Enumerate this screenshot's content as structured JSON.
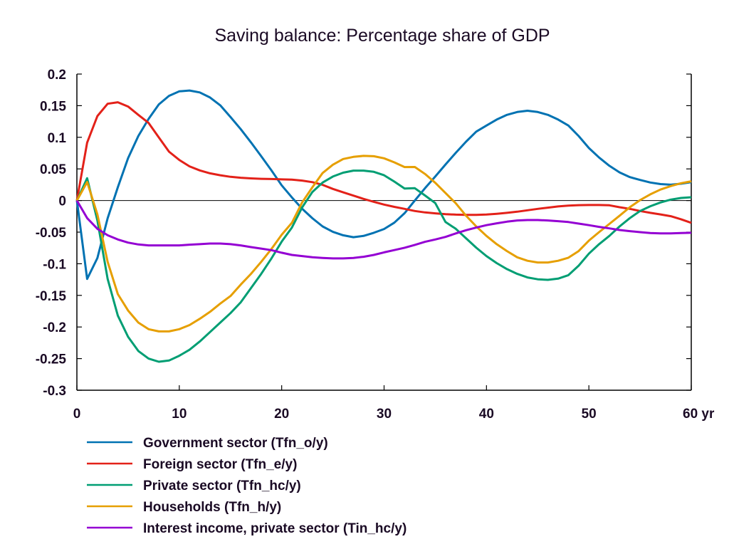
{
  "chart_data": {
    "type": "line",
    "title": "Saving balance: Percentage share of GDP",
    "xlabel": "",
    "ylabel": "",
    "x_unit_label": "yr",
    "xlim": [
      0,
      60
    ],
    "ylim": [
      -0.3,
      0.2
    ],
    "x_ticks": [
      0,
      10,
      20,
      30,
      40,
      50,
      60
    ],
    "x_tick_labels": [
      "0",
      "10",
      "20",
      "30",
      "40",
      "50",
      "60 yr"
    ],
    "y_ticks": [
      0.2,
      0.15,
      0.1,
      0.05,
      0,
      -0.05,
      -0.1,
      -0.15,
      -0.2,
      -0.25,
      -0.3
    ],
    "y_tick_labels": [
      "0.2",
      "0.15",
      "0.1",
      "0.05",
      "0",
      "-0.05",
      "-0.1",
      "-0.15",
      "-0.2",
      "-0.25",
      "-0.3"
    ],
    "grid": false,
    "zero_line": true,
    "legend_position": "bottom",
    "x": [
      0,
      1,
      2,
      3,
      4,
      5,
      6,
      7,
      8,
      9,
      10,
      11,
      12,
      13,
      14,
      15,
      16,
      17,
      18,
      19,
      20,
      21,
      22,
      23,
      24,
      25,
      26,
      27,
      28,
      29,
      30,
      31,
      32,
      33,
      34,
      35,
      36,
      37,
      38,
      39,
      40,
      41,
      42,
      43,
      44,
      45,
      46,
      47,
      48,
      49,
      50,
      51,
      52,
      53,
      54,
      55,
      56,
      57,
      58,
      59,
      60
    ],
    "series": [
      {
        "name": "Government sector (Tfn_o/y)",
        "color": "#0072b2",
        "values": [
          0,
          -0.124,
          -0.091,
          -0.028,
          0.021,
          0.067,
          0.102,
          0.129,
          0.152,
          0.1655,
          0.1726,
          0.174,
          0.171,
          0.163,
          0.1506,
          0.132,
          0.113,
          0.092,
          0.07,
          0.0476,
          0.024,
          0.005,
          -0.013,
          -0.028,
          -0.041,
          -0.0495,
          -0.055,
          -0.058,
          -0.056,
          -0.051,
          -0.045,
          -0.035,
          -0.02,
          0.0,
          0.0195,
          0.038,
          0.057,
          0.0755,
          0.093,
          0.109,
          0.1186,
          0.128,
          0.1355,
          0.14,
          0.142,
          0.14,
          0.1355,
          0.128,
          0.1186,
          0.102,
          0.083,
          0.068,
          0.055,
          0.0445,
          0.037,
          0.0326,
          0.0285,
          0.026,
          0.025,
          0.0266,
          0.029
        ]
      },
      {
        "name": "Foreign sector (Tfn_e/y)",
        "color": "#e32119",
        "values": [
          0,
          0.0916,
          0.1336,
          0.153,
          0.1554,
          0.1486,
          0.1355,
          0.1227,
          0.0998,
          0.0773,
          0.0642,
          0.054,
          0.0476,
          0.043,
          0.04,
          0.0375,
          0.036,
          0.035,
          0.0344,
          0.034,
          0.0335,
          0.033,
          0.0315,
          0.029,
          0.0248,
          0.0183,
          0.013,
          0.0078,
          0.0026,
          -0.002,
          -0.0064,
          -0.01,
          -0.0132,
          -0.0165,
          -0.0188,
          -0.0203,
          -0.0215,
          -0.0223,
          -0.0226,
          -0.0226,
          -0.0222,
          -0.021,
          -0.0195,
          -0.0177,
          -0.0154,
          -0.0132,
          -0.0113,
          -0.0094,
          -0.008,
          -0.0073,
          -0.0071,
          -0.0071,
          -0.0075,
          -0.0106,
          -0.0132,
          -0.0165,
          -0.0195,
          -0.022,
          -0.0248,
          -0.0296,
          -0.0353
        ]
      },
      {
        "name": "Private sector (Tfn_hc/y)",
        "color": "#009e73",
        "values": [
          0,
          0.0353,
          -0.0315,
          -0.124,
          -0.182,
          -0.2155,
          -0.238,
          -0.25,
          -0.255,
          -0.253,
          -0.2455,
          -0.236,
          -0.223,
          -0.208,
          -0.193,
          -0.178,
          -0.161,
          -0.1385,
          -0.116,
          -0.0916,
          -0.065,
          -0.0428,
          -0.0109,
          0.0135,
          0.0285,
          0.038,
          0.044,
          0.0473,
          0.0473,
          0.0454,
          0.04,
          0.03,
          0.019,
          0.0195,
          0.008,
          -0.004,
          -0.034,
          -0.0447,
          -0.0597,
          -0.0747,
          -0.0878,
          -0.099,
          -0.1085,
          -0.116,
          -0.1216,
          -0.1246,
          -0.1254,
          -0.1235,
          -0.118,
          -0.103,
          -0.084,
          -0.069,
          -0.056,
          -0.041,
          -0.0278,
          -0.0165,
          -0.009,
          -0.003,
          0.0015,
          0.004,
          0.0052
        ]
      },
      {
        "name": "Households (Tfn_h/y)",
        "color": "#e69f00",
        "values": [
          0,
          0.0293,
          -0.022,
          -0.097,
          -0.148,
          -0.174,
          -0.193,
          -0.2035,
          -0.207,
          -0.207,
          -0.2035,
          -0.197,
          -0.187,
          -0.176,
          -0.163,
          -0.151,
          -0.133,
          -0.116,
          -0.097,
          -0.0766,
          -0.054,
          -0.0353,
          -0.003,
          0.021,
          0.0436,
          0.0567,
          0.0656,
          0.069,
          0.0706,
          0.07,
          0.0668,
          0.0604,
          0.0529,
          0.053,
          0.042,
          0.028,
          0.0118,
          -0.0043,
          -0.024,
          -0.041,
          -0.056,
          -0.069,
          -0.08,
          -0.0897,
          -0.0953,
          -0.098,
          -0.098,
          -0.0953,
          -0.0904,
          -0.08,
          -0.0634,
          -0.05,
          -0.037,
          -0.024,
          -0.0106,
          0.0007,
          0.0098,
          0.0173,
          0.0229,
          0.0274,
          0.0304
        ]
      },
      {
        "name": "Interest income, private sector (Tin_hc/y)",
        "color": "#9400d3",
        "values": [
          0,
          -0.0278,
          -0.0447,
          -0.055,
          -0.0616,
          -0.0665,
          -0.0695,
          -0.071,
          -0.071,
          -0.071,
          -0.071,
          -0.0698,
          -0.069,
          -0.068,
          -0.068,
          -0.069,
          -0.071,
          -0.0736,
          -0.076,
          -0.0785,
          -0.0825,
          -0.086,
          -0.0878,
          -0.0897,
          -0.0908,
          -0.0916,
          -0.0916,
          -0.0908,
          -0.089,
          -0.086,
          -0.082,
          -0.0784,
          -0.0747,
          -0.0702,
          -0.0653,
          -0.0616,
          -0.0575,
          -0.052,
          -0.047,
          -0.0428,
          -0.039,
          -0.036,
          -0.0334,
          -0.0315,
          -0.0308,
          -0.0308,
          -0.0315,
          -0.0327,
          -0.034,
          -0.0365,
          -0.039,
          -0.0417,
          -0.044,
          -0.0466,
          -0.0484,
          -0.05,
          -0.0515,
          -0.052,
          -0.052,
          -0.0515,
          -0.051
        ]
      }
    ]
  }
}
